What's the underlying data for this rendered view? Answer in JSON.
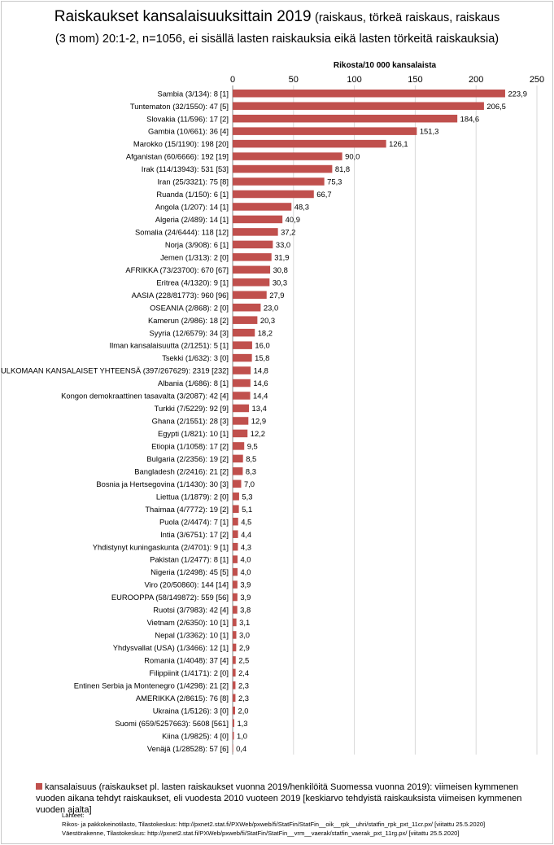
{
  "title": {
    "main": "Raiskaukset kansalaisuuksittain 2019",
    "paren_line1": "(raiskaus, törkeä raiskaus, raiskaus",
    "line2": "(3 mom) 20:1-2, n=1056, ei sisällä lasten raiskauksia eikä lasten törkeitä raiskauksia)"
  },
  "colors": {
    "bar": "#c0504d",
    "grid": "#d9d9d9",
    "axis": "#888888"
  },
  "chart_data": {
    "type": "bar",
    "orientation": "horizontal",
    "xlabel": "Rikosta/10 000 kansalaista",
    "xlim": [
      0,
      250
    ],
    "xticks": [
      0,
      50,
      100,
      150,
      200,
      250
    ],
    "grid": true,
    "legend_position": "bottom",
    "categories": [
      "Sambia (3/134): 8 [1]",
      "Tuntematon (32/1550): 47 [5]",
      "Slovakia (11/596): 17 [2]",
      "Gambia (10/661): 36 [4]",
      "Marokko (15/1190): 198 [20]",
      "Afganistan (60/6666): 192 [19]",
      "Irak (114/13943): 531 [53]",
      "Iran (25/3321): 75 [8]",
      "Ruanda (1/150): 6 [1]",
      "Angola (1/207): 14 [1]",
      "Algeria (2/489): 14 [1]",
      "Somalia (24/6444): 118 [12]",
      "Norja (3/908): 6 [1]",
      "Jemen (1/313): 2 [0]",
      "AFRIKKA (73/23700): 670 [67]",
      "Eritrea (4/1320): 9 [1]",
      "AASIA (228/81773): 960 [96]",
      "OSEANIA (2/868): 2 [0]",
      "Kamerun (2/986): 18 [2]",
      "Syyria (12/6579): 34 [3]",
      "Ilman kansalaisuutta (2/1251): 5 [1]",
      "Tsekki (1/632): 3 [0]",
      "ULKOMAAN KANSALAISET YHTEENSÄ (397/267629): 2319 [232]",
      "Albania (1/686): 8 [1]",
      "Kongon demokraattinen tasavalta (3/2087): 42 [4]",
      "Turkki (7/5229): 92 [9]",
      "Ghana (2/1551): 28 [3]",
      "Egypti (1/821): 10 [1]",
      "Etiopia (1/1058): 17 [2]",
      "Bulgaria (2/2356): 19 [2]",
      "Bangladesh (2/2416): 21 [2]",
      "Bosnia ja Hertsegovina (1/1430): 30 [3]",
      "Liettua (1/1879): 2 [0]",
      "Thaimaa (4/7772): 19 [2]",
      "Puola (2/4474): 7 [1]",
      "Intia (3/6751): 17 [2]",
      "Yhdistynyt kuningaskunta (2/4701): 9 [1]",
      "Pakistan (1/2477): 8 [1]",
      "Nigeria (1/2498): 45 [5]",
      "Viro (20/50860): 144 [14]",
      "EUROOPPA (58/149872): 559 [56]",
      "Ruotsi (3/7983): 42 [4]",
      "Vietnam (2/6350): 10 [1]",
      "Nepal (1/3362): 10 [1]",
      "Yhdysvallat (USA) (1/3466): 12 [1]",
      "Romania (1/4048): 37 [4]",
      "Filippiinit (1/4171): 2 [0]",
      "Entinen Serbia ja Montenegro (1/4298): 21 [2]",
      "AMERIKKA (2/8615): 76 [8]",
      "Ukraina (1/5126): 3 [0]",
      "Suomi (659/5257663): 5608 [561]",
      "Kiina (1/9825): 4 [0]",
      "Venäjä (1/28528): 57 [6]"
    ],
    "values": [
      223.9,
      206.5,
      184.6,
      151.3,
      126.1,
      90.0,
      81.8,
      75.3,
      66.7,
      48.3,
      40.9,
      37.2,
      33.0,
      31.9,
      30.8,
      30.3,
      27.9,
      23.0,
      20.3,
      18.2,
      16.0,
      15.8,
      14.8,
      14.6,
      14.4,
      13.4,
      12.9,
      12.2,
      9.5,
      8.5,
      8.3,
      7.0,
      5.3,
      5.1,
      4.5,
      4.4,
      4.3,
      4.0,
      4.0,
      3.9,
      3.9,
      3.8,
      3.1,
      3.0,
      2.9,
      2.5,
      2.4,
      2.3,
      2.3,
      2.0,
      1.3,
      1.0,
      0.4
    ],
    "value_labels": [
      "223,9",
      "206,5",
      "184,6",
      "151,3",
      "126,1",
      "90,0",
      "81,8",
      "75,3",
      "66,7",
      "48,3",
      "40,9",
      "37,2",
      "33,0",
      "31,9",
      "30,8",
      "30,3",
      "27,9",
      "23,0",
      "20,3",
      "18,2",
      "16,0",
      "15,8",
      "14,8",
      "14,6",
      "14,4",
      "13,4",
      "12,9",
      "12,2",
      "9,5",
      "8,5",
      "8,3",
      "7,0",
      "5,3",
      "5,1",
      "4,5",
      "4,4",
      "4,3",
      "4,0",
      "4,0",
      "3,9",
      "3,9",
      "3,8",
      "3,1",
      "3,0",
      "2,9",
      "2,5",
      "2,4",
      "2,3",
      "2,3",
      "2,0",
      "1,3",
      "1,0",
      "0,4"
    ],
    "legend": "kansalaisuus (raiskaukset pl. lasten raiskaukset vuonna 2019/henkilöitä Suomessa vuonna 2019): viimeisen kymmenen vuoden aikana tehdyt raiskaukset, eli vuodesta 2010 vuoteen 2019 [keskiarvo tehdyistä raiskauksista viimeisen kymmenen vuoden ajalta]"
  },
  "sources": {
    "heading": "Lähteet:",
    "line1": "Rikos- ja pakkokeinotilasto, Tilastokeskus: http://pxnet2.stat.fi/PXWeb/pxweb/fi/StatFin/StatFin__oik__rpk__uhri/statfin_rpk_pxt_11cr.px/ [viitattu 25.5.2020]",
    "line2": "Väestörakenne, Tilastokeskus: http://pxnet2.stat.fi/PXWeb/pxweb/fi/StatFin/StatFin__vrm__vaerak/statfin_vaerak_pxt_11rg.px/ [viitattu 25.5.2020]"
  }
}
